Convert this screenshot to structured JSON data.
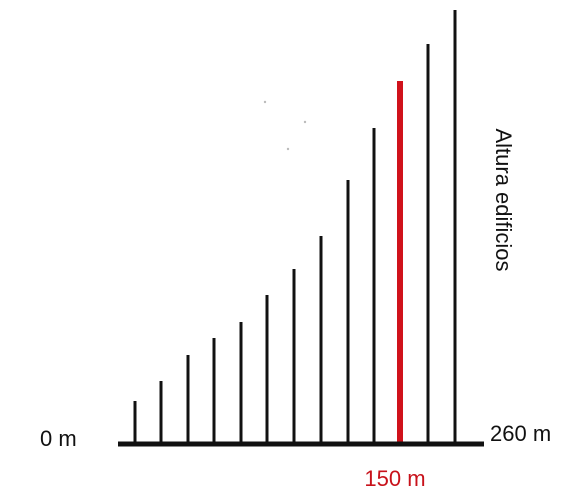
{
  "labels": {
    "start": "0 m",
    "end": "260 m",
    "marker": "150 m",
    "axis": "Altura edificios"
  }
}
